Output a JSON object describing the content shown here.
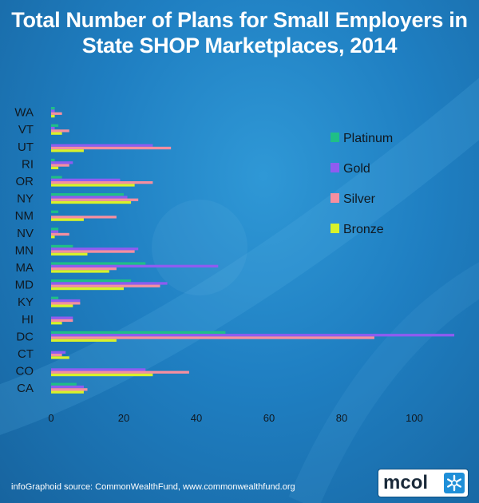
{
  "title_line_1": "Total Number of Plans for Small Employers in",
  "title_line_2": "State SHOP Marketplaces, 2014",
  "source": "infoGraphoid source:   CommonWealthFund, www.commonwealthfund.org",
  "logo": {
    "text": "mcol",
    "icon": "asterisk-snowflake-icon"
  },
  "colors": {
    "platinum": "#1fbf86",
    "gold": "#8f5cf0",
    "silver": "#f58fa0",
    "bronze": "#d8f22a",
    "axis_text": "#101820"
  },
  "chart_data": {
    "type": "bar",
    "orientation": "horizontal",
    "title": "Total Number of Plans for Small Employers in State SHOP Marketplaces, 2014",
    "xlabel": "",
    "ylabel": "",
    "xlim": [
      0,
      112
    ],
    "x_ticks": [
      0,
      20,
      40,
      60,
      80,
      100
    ],
    "grid": false,
    "legend_position": "right",
    "categories": [
      "WA",
      "VT",
      "UT",
      "RI",
      "OR",
      "NY",
      "NM",
      "NV",
      "MN",
      "MA",
      "MD",
      "KY",
      "HI",
      "DC",
      "CT",
      "CO",
      "CA"
    ],
    "series": [
      {
        "name": "Platinum",
        "color": "#1fbf86",
        "values": [
          1,
          2,
          0,
          1,
          3,
          20,
          2,
          2,
          6,
          26,
          22,
          2,
          0,
          48,
          0,
          0,
          7
        ]
      },
      {
        "name": "Gold",
        "color": "#8f5cf0",
        "values": [
          1,
          1,
          28,
          6,
          19,
          21,
          0,
          2,
          24,
          46,
          32,
          8,
          6,
          111,
          4,
          26,
          9
        ]
      },
      {
        "name": "Silver",
        "color": "#f58fa0",
        "values": [
          3,
          5,
          33,
          5,
          28,
          24,
          18,
          5,
          23,
          18,
          30,
          8,
          6,
          89,
          3,
          38,
          10
        ]
      },
      {
        "name": "Bronze",
        "color": "#d8f22a",
        "values": [
          1,
          3,
          9,
          2,
          23,
          22,
          9,
          1,
          10,
          16,
          20,
          6,
          3,
          18,
          5,
          28,
          9
        ]
      }
    ]
  }
}
